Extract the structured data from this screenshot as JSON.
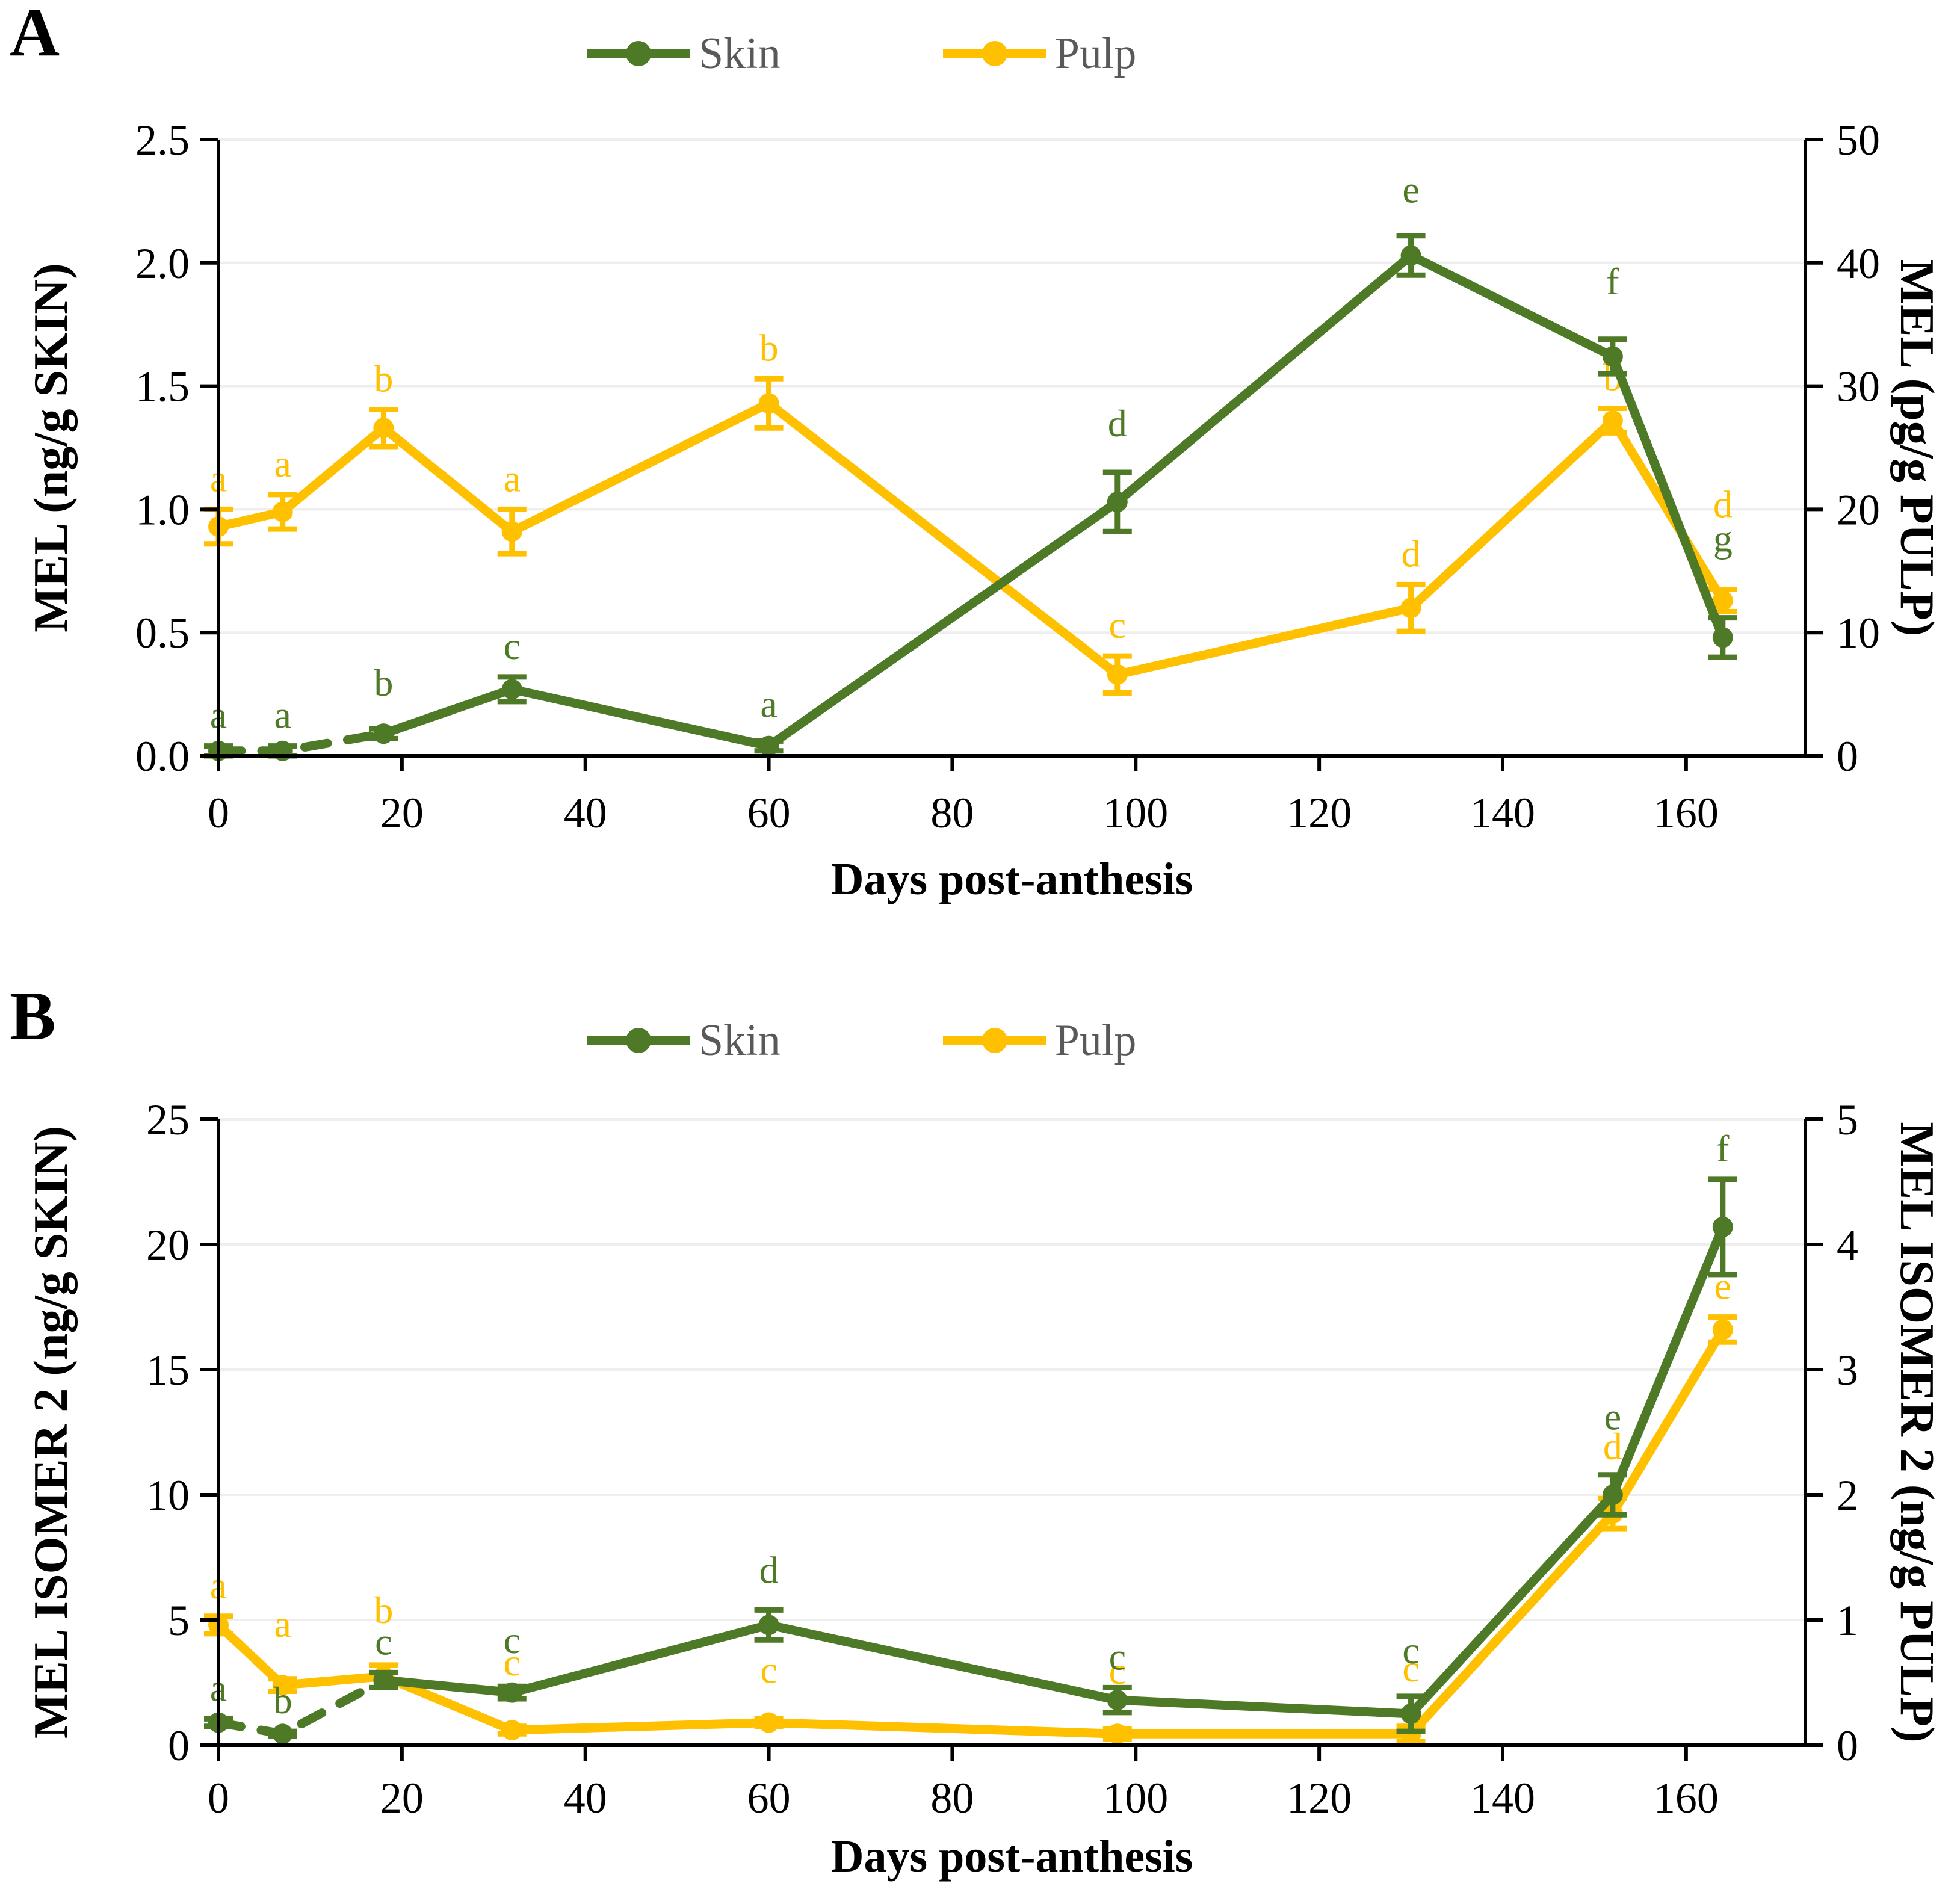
{
  "colors": {
    "skin": "#4E7A27",
    "pulp": "#FFC000",
    "legend_text": "#595959",
    "gridline": "#EEEEEE",
    "axis": "#000000"
  },
  "chart_data": [
    {
      "type": "line",
      "panel_label": "A",
      "xlabel": "Days post-anthesis",
      "x_ticks": [
        0,
        20,
        40,
        60,
        80,
        100,
        120,
        140,
        160
      ],
      "x_range": [
        0,
        173
      ],
      "grid": true,
      "legend_position": "top-center",
      "left_axis": {
        "label": "MEL (ng/g SKIN)",
        "range": [
          0,
          2.5
        ],
        "ticks": [
          "0.0",
          "0.5",
          "1.0",
          "1.5",
          "2.0",
          "2.5"
        ]
      },
      "right_axis": {
        "label": "MEL (pg/g PULP)",
        "range": [
          0,
          50
        ],
        "ticks": [
          "0",
          "10",
          "20",
          "30",
          "40",
          "50"
        ]
      },
      "x": [
        0,
        7,
        18,
        32,
        60,
        98,
        130,
        152,
        164
      ],
      "series": [
        {
          "name": "Skin",
          "axis": "left",
          "color": "#4E7A27",
          "dashed_segments": 2,
          "values": [
            0.02,
            0.02,
            0.09,
            0.27,
            0.04,
            1.03,
            2.03,
            1.62,
            0.48
          ],
          "errors": [
            0.02,
            0.02,
            0.02,
            0.05,
            0.02,
            0.12,
            0.08,
            0.07,
            0.08
          ],
          "point_labels": [
            "a",
            "a",
            "b",
            "c",
            "a",
            "d",
            "e",
            "f",
            "g"
          ],
          "label_dy": [
            0,
            0,
            -25,
            0,
            -10,
            -30,
            -25,
            -45,
            -80
          ]
        },
        {
          "name": "Pulp",
          "axis": "right",
          "color": "#FFC000",
          "dashed_segments": 0,
          "values": [
            18.6,
            19.8,
            26.6,
            18.2,
            28.6,
            6.6,
            12.0,
            27.2,
            12.6
          ],
          "errors": [
            1.4,
            1.4,
            1.5,
            1.8,
            2.0,
            1.5,
            1.9,
            1.0,
            0.9
          ],
          "point_labels": [
            "a",
            "a",
            "b",
            "a",
            "b",
            "c",
            "d",
            "b",
            "d"
          ],
          "label_dy": [
            0,
            0,
            0,
            0,
            0,
            0,
            0,
            0,
            -90
          ]
        }
      ]
    },
    {
      "type": "line",
      "panel_label": "B",
      "xlabel": "Days post-anthesis",
      "x_ticks": [
        0,
        20,
        40,
        60,
        80,
        100,
        120,
        140,
        160
      ],
      "x_range": [
        0,
        173
      ],
      "grid": true,
      "legend_position": "top-center",
      "left_axis": {
        "label": "MEL ISOMER 2 (ng/g SKIN)",
        "range": [
          0,
          25
        ],
        "ticks": [
          "0",
          "5",
          "10",
          "15",
          "20",
          "25"
        ]
      },
      "right_axis": {
        "label": "MEL ISOMER 2 (ng/g PULP)",
        "range": [
          0,
          5
        ],
        "ticks": [
          "0",
          "1",
          "2",
          "3",
          "4",
          "5"
        ]
      },
      "x": [
        0,
        7,
        18,
        32,
        60,
        98,
        130,
        152,
        164
      ],
      "series": [
        {
          "name": "Skin",
          "axis": "left",
          "color": "#4E7A27",
          "dashed_segments": 2,
          "values": [
            0.9,
            0.45,
            2.6,
            2.1,
            4.8,
            1.8,
            1.25,
            10.0,
            20.7
          ],
          "errors": [
            0.15,
            0.1,
            0.3,
            0.25,
            0.6,
            0.5,
            0.7,
            0.8,
            1.9
          ],
          "point_labels": [
            "a",
            "b",
            "c",
            "c",
            "d",
            "c",
            "c",
            "e",
            "f"
          ],
          "label_dy": [
            0,
            0,
            0,
            -25,
            -15,
            0,
            -25,
            -45,
            0
          ]
        },
        {
          "name": "Pulp",
          "axis": "right",
          "color": "#FFC000",
          "dashed_segments": 0,
          "values": [
            0.96,
            0.48,
            0.55,
            0.12,
            0.18,
            0.09,
            0.09,
            1.85,
            3.32
          ],
          "errors": [
            0.07,
            0.05,
            0.09,
            0.03,
            0.03,
            0.04,
            0.06,
            0.12,
            0.1
          ],
          "point_labels": [
            "a",
            "a",
            "b",
            "c",
            "c",
            "c",
            "c",
            "d",
            "e"
          ],
          "label_dy": [
            0,
            -40,
            -40,
            -55,
            -30,
            -45,
            -45,
            -35,
            0
          ]
        }
      ]
    }
  ]
}
